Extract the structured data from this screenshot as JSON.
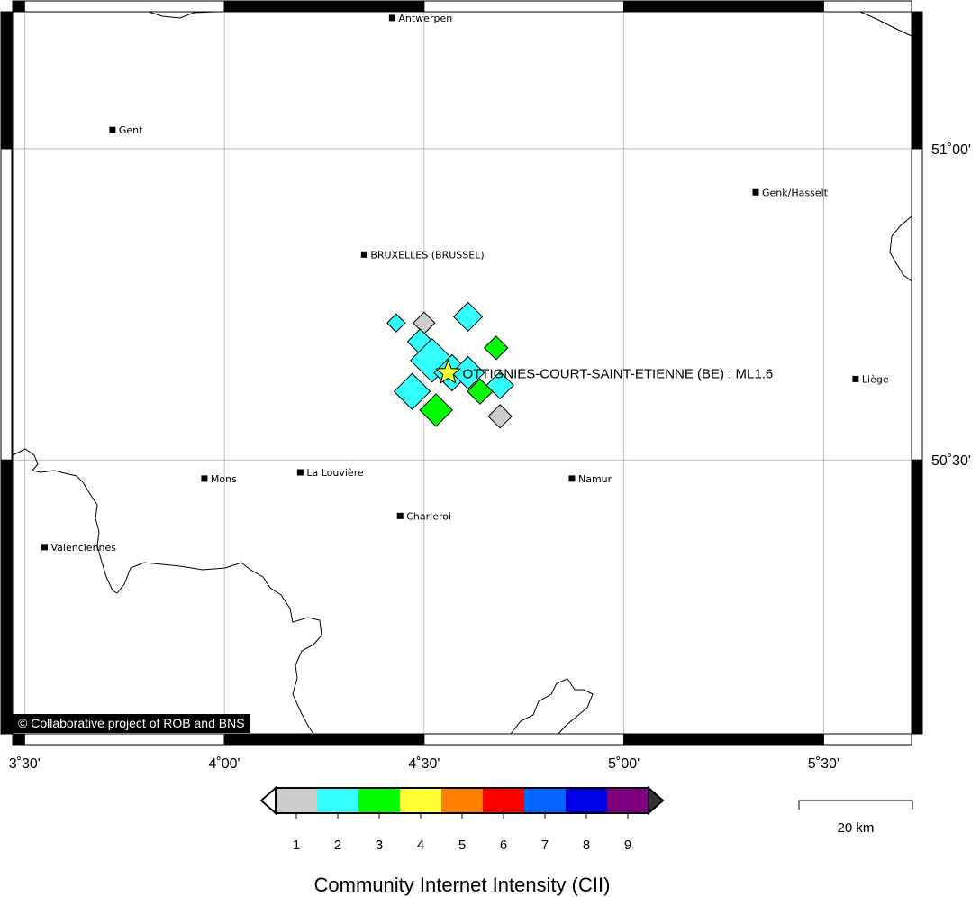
{
  "map": {
    "lon_range": [
      3.47,
      5.72
    ],
    "lat_range": [
      50.06,
      51.22
    ],
    "grid_lons": [
      3.5,
      4.0,
      4.5,
      5.0,
      5.5
    ],
    "grid_lats": [
      50.5,
      51.0
    ],
    "lon_tick_labels": [
      {
        "value": 3.5,
        "label": "3˚30'"
      },
      {
        "value": 4.0,
        "label": "4˚00'"
      },
      {
        "value": 4.5,
        "label": "4˚30'"
      },
      {
        "value": 5.0,
        "label": "5˚00'"
      },
      {
        "value": 5.5,
        "label": "5˚30'"
      }
    ],
    "lat_tick_labels": [
      {
        "value": 51.0,
        "label": "51˚00'"
      },
      {
        "value": 50.5,
        "label": "50˚30'"
      }
    ],
    "cities": [
      {
        "name": "Antwerpen",
        "lon": 4.42,
        "lat": 51.21
      },
      {
        "name": "Gent",
        "lon": 3.72,
        "lat": 51.03
      },
      {
        "name": "Genk/Hasselt",
        "lon": 5.33,
        "lat": 50.93
      },
      {
        "name": "BRUXELLES (BRUSSEL)",
        "lon": 4.35,
        "lat": 50.83
      },
      {
        "name": "Liège",
        "lon": 5.58,
        "lat": 50.63
      },
      {
        "name": "Mons",
        "lon": 3.95,
        "lat": 50.47
      },
      {
        "name": "La Louvière",
        "lon": 4.19,
        "lat": 50.48
      },
      {
        "name": "Namur",
        "lon": 4.87,
        "lat": 50.47
      },
      {
        "name": "Charleroi",
        "lon": 4.44,
        "lat": 50.41
      },
      {
        "name": "Valenciennes",
        "lon": 3.55,
        "lat": 50.36
      }
    ],
    "event": {
      "label": "OTTIGNIES-COURT-SAINT-ETIENNE (BE) : ML1.6",
      "lon": 4.56,
      "lat": 50.64,
      "color": "#ffff33"
    },
    "observations": [
      {
        "lon": 4.43,
        "lat": 50.72,
        "cii": 2,
        "size": 10
      },
      {
        "lon": 4.5,
        "lat": 50.72,
        "cii": 1,
        "size": 12
      },
      {
        "lon": 4.61,
        "lat": 50.73,
        "cii": 2,
        "size": 16
      },
      {
        "lon": 4.49,
        "lat": 50.69,
        "cii": 2,
        "size": 14
      },
      {
        "lon": 4.68,
        "lat": 50.68,
        "cii": 3,
        "size": 13
      },
      {
        "lon": 4.52,
        "lat": 50.66,
        "cii": 2,
        "size": 24
      },
      {
        "lon": 4.57,
        "lat": 50.64,
        "cii": 2,
        "size": 20
      },
      {
        "lon": 4.61,
        "lat": 50.64,
        "cii": 2,
        "size": 18
      },
      {
        "lon": 4.47,
        "lat": 50.61,
        "cii": 2,
        "size": 20
      },
      {
        "lon": 4.64,
        "lat": 50.61,
        "cii": 3,
        "size": 14
      },
      {
        "lon": 4.69,
        "lat": 50.62,
        "cii": 2,
        "size": 15
      },
      {
        "lon": 4.53,
        "lat": 50.58,
        "cii": 3,
        "size": 18
      },
      {
        "lon": 4.69,
        "lat": 50.57,
        "cii": 1,
        "size": 13
      }
    ],
    "scale_bar": {
      "label": "20 km"
    },
    "copyright": "© Collaborative project of ROB and BNS"
  },
  "legend": {
    "title": "Community Internet Intensity (CII)",
    "classes": [
      {
        "value": "1",
        "color": "#cccccc"
      },
      {
        "value": "2",
        "color": "#33ffff"
      },
      {
        "value": "3",
        "color": "#00ff00"
      },
      {
        "value": "4",
        "color": "#ffff33"
      },
      {
        "value": "5",
        "color": "#ff7f00"
      },
      {
        "value": "6",
        "color": "#ff0000"
      },
      {
        "value": "7",
        "color": "#0066ff"
      },
      {
        "value": "8",
        "color": "#0000e6"
      },
      {
        "value": "9",
        "color": "#7f007f"
      }
    ],
    "below_color": "#ffffff",
    "above_color": "#333333"
  }
}
